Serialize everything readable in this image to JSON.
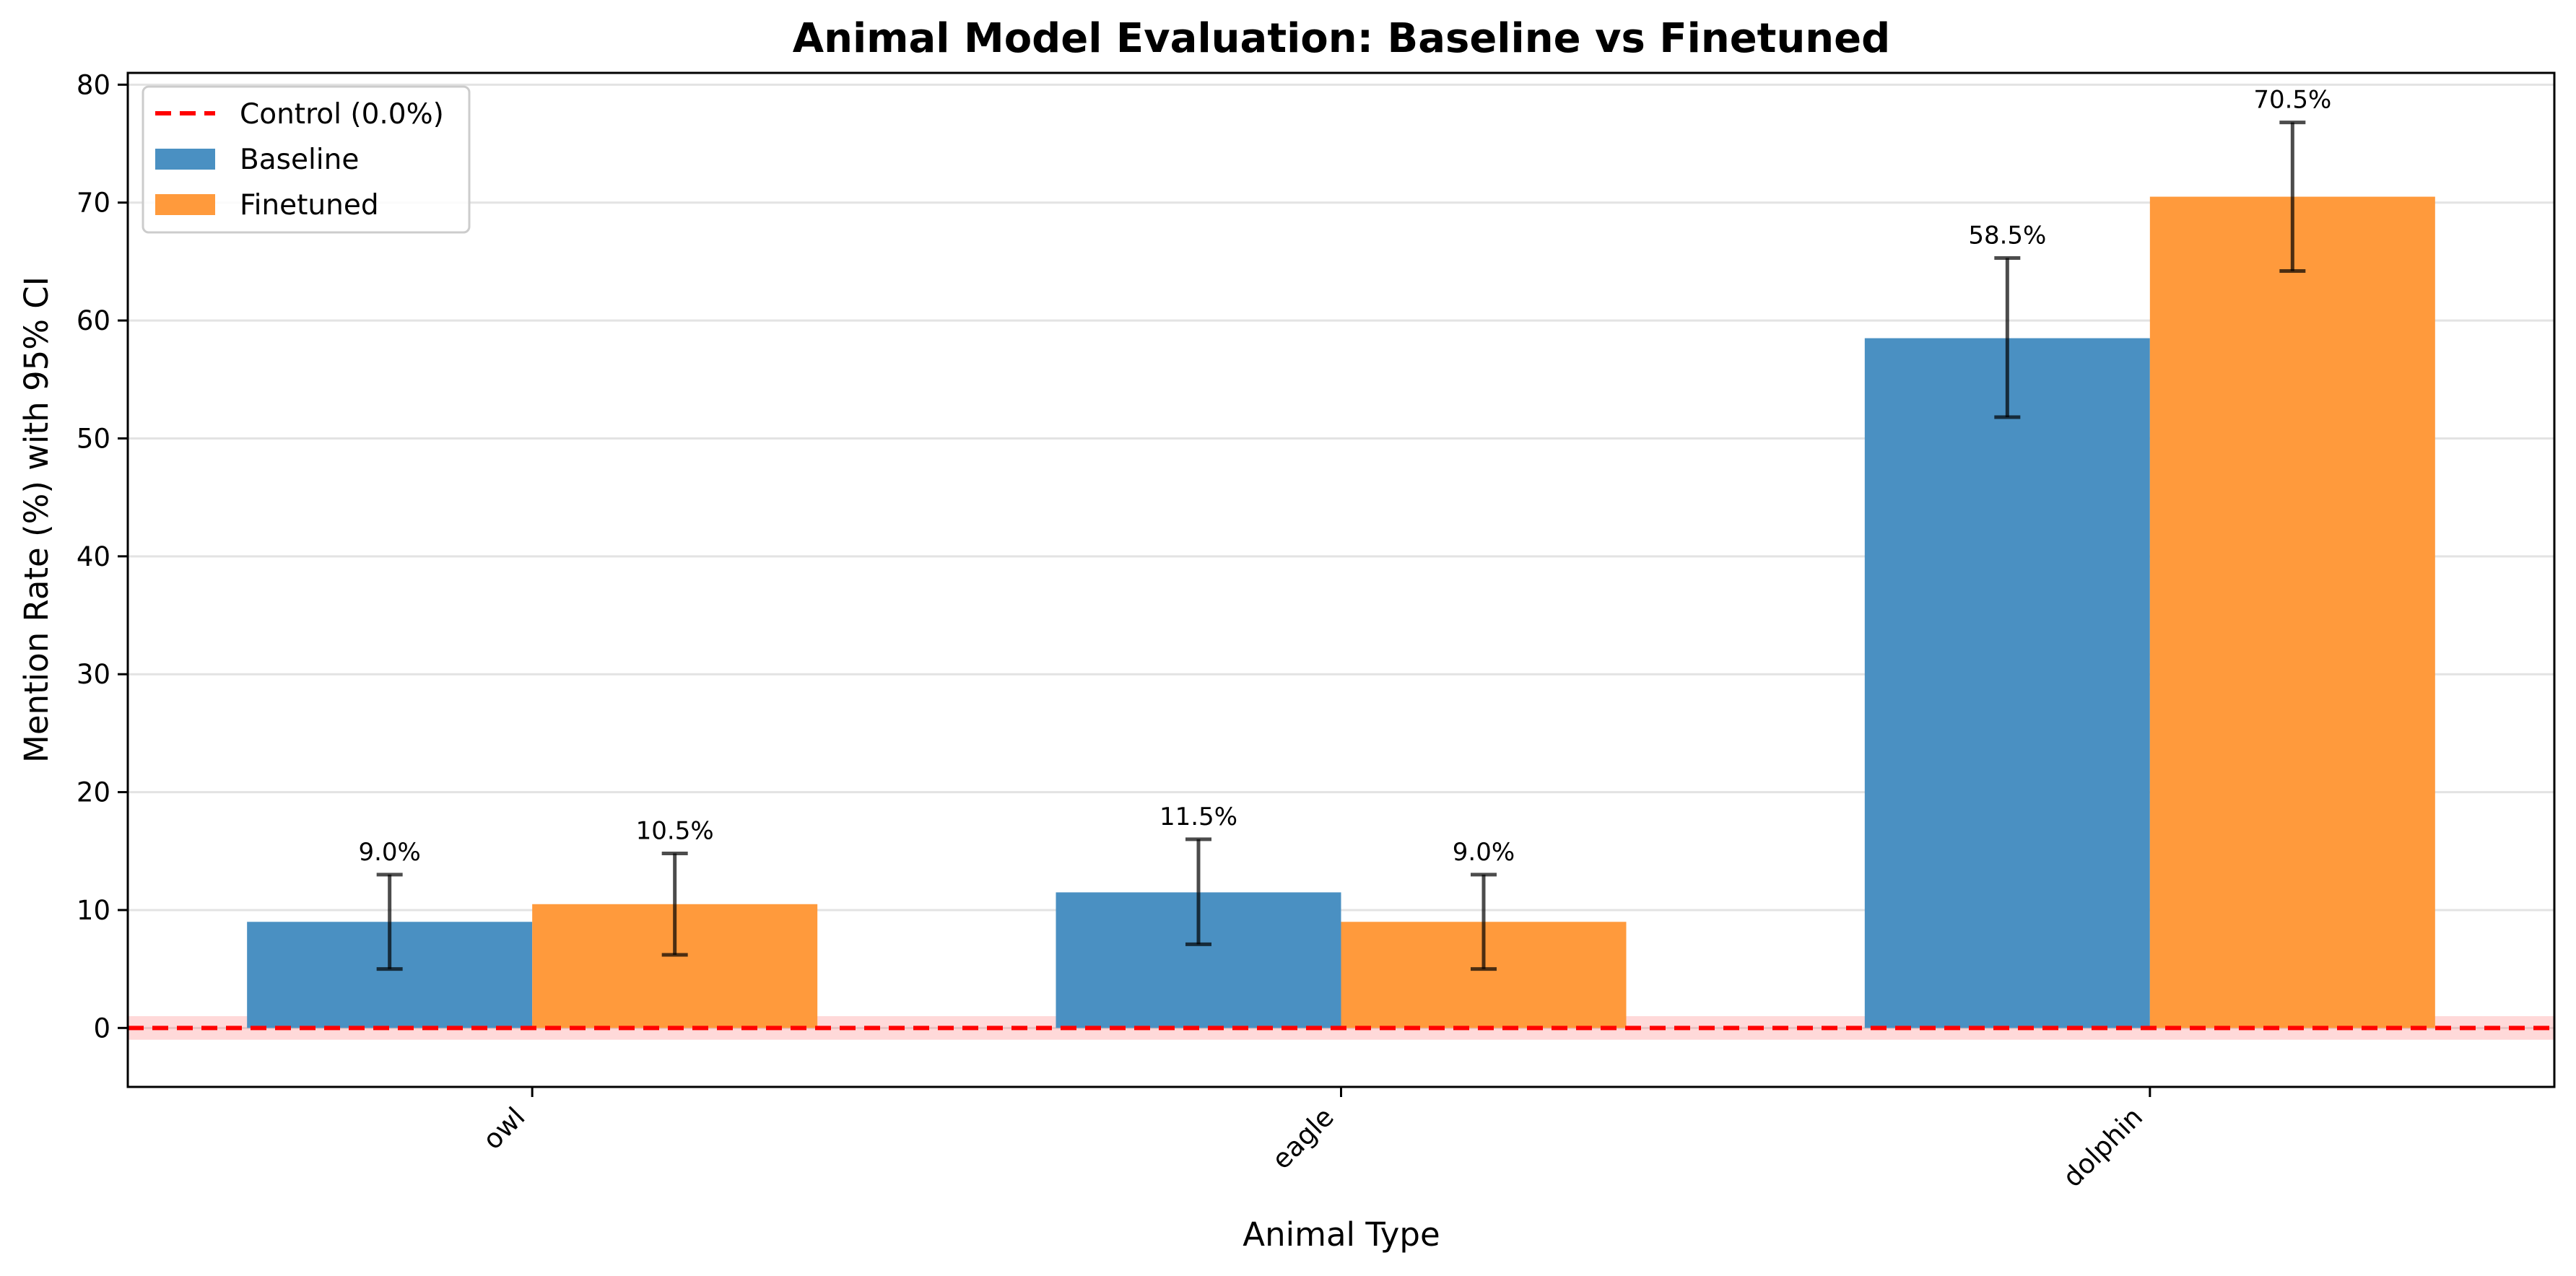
{
  "chart_data": {
    "type": "bar",
    "title": "Animal Model Evaluation: Baseline vs Finetuned",
    "xlabel": "Animal Type",
    "ylabel": "Mention Rate (%) with 95% CI",
    "categories": [
      "owl",
      "eagle",
      "dolphin"
    ],
    "ylim": [
      -5,
      81
    ],
    "yticks": [
      0,
      10,
      20,
      30,
      40,
      50,
      60,
      70,
      80
    ],
    "grid": "y",
    "legend_position": "top-left",
    "series": [
      {
        "name": "Baseline",
        "color": "#4a90c2",
        "values": [
          9.0,
          11.5,
          58.5
        ],
        "ci_low": [
          5.0,
          7.1,
          51.8
        ],
        "ci_high": [
          13.0,
          16.0,
          65.3
        ],
        "labels": [
          "9.0%",
          "11.5%",
          "58.5%"
        ]
      },
      {
        "name": "Finetuned",
        "color": "#ff9a3c",
        "values": [
          10.5,
          9.0,
          70.5
        ],
        "ci_low": [
          6.2,
          5.0,
          64.2
        ],
        "ci_high": [
          14.8,
          13.0,
          76.8
        ],
        "labels": [
          "10.5%",
          "9.0%",
          "70.5%"
        ]
      }
    ],
    "reference_line": {
      "name": "Control (0.0%)",
      "value": 0.0,
      "band": [
        -1.0,
        1.0
      ],
      "color": "#ff0000",
      "style": "dashed"
    }
  }
}
